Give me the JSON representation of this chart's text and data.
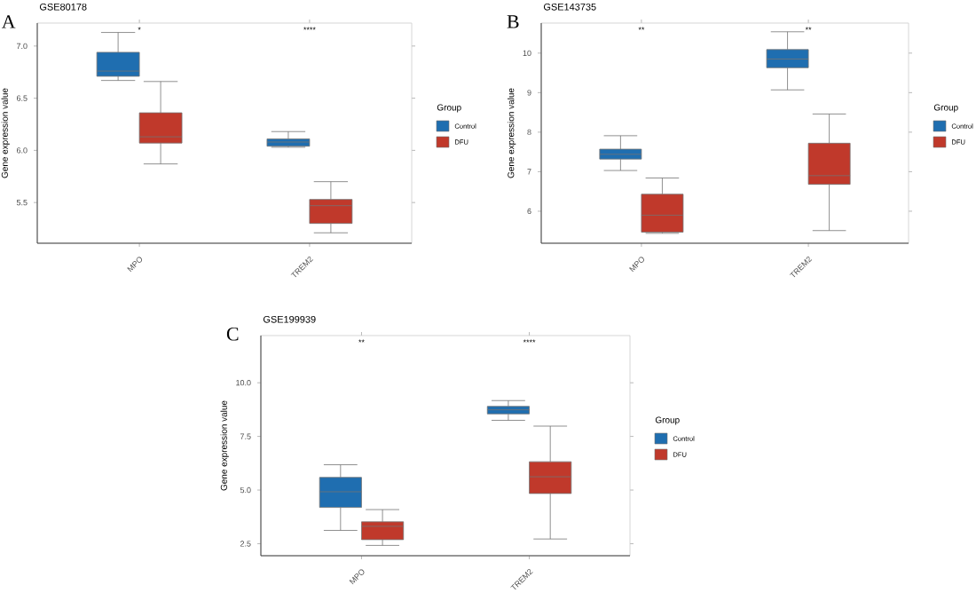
{
  "chart_data": [
    {
      "type": "box",
      "title": "GSE80178",
      "ylabel": "Gene expression value",
      "legend_title": "Group",
      "legend": "right",
      "categories": [
        "MPO",
        "TREM2"
      ],
      "ylim": [
        5.11,
        7.22
      ],
      "yticks": [
        {
          "value": 5.5,
          "label": "5.5"
        },
        {
          "value": 6.0,
          "label": "6.0"
        },
        {
          "value": 6.5,
          "label": "6.5"
        },
        {
          "value": 7.0,
          "label": "7.0"
        }
      ],
      "series": [
        {
          "name": "Control",
          "color": "#1f6eb0",
          "boxes": [
            {
              "low": 6.67,
              "q1": 6.71,
              "median": 6.76,
              "q3": 6.94,
              "high": 7.13
            },
            {
              "low": 6.03,
              "q1": 6.04,
              "median": 6.08,
              "q3": 6.11,
              "high": 6.18
            }
          ]
        },
        {
          "name": "DFU",
          "color": "#c0392b",
          "boxes": [
            {
              "low": 5.87,
              "q1": 6.07,
              "median": 6.13,
              "q3": 6.36,
              "high": 6.66
            },
            {
              "low": 5.21,
              "q1": 5.3,
              "median": 5.47,
              "q3": 5.53,
              "high": 5.7
            }
          ]
        }
      ],
      "annotations": [
        "A",
        "*",
        "****"
      ]
    },
    {
      "type": "box",
      "title": "GSE143735",
      "ylabel": "Gene expression value",
      "legend_title": "Group",
      "legend": "right",
      "categories": [
        "MPO",
        "TREM2"
      ],
      "ylim": [
        5.19,
        10.76
      ],
      "yticks": [
        6,
        7,
        8,
        9,
        10
      ],
      "series": [
        {
          "name": "Control",
          "color": "#1f6eb0",
          "boxes": [
            {
              "low": 7.03,
              "q1": 7.32,
              "median": 7.44,
              "q3": 7.57,
              "high": 7.91
            },
            {
              "low": 9.07,
              "q1": 9.63,
              "median": 9.85,
              "q3": 10.09,
              "high": 10.54
            }
          ]
        },
        {
          "name": "DFU",
          "color": "#c0392b",
          "boxes": [
            {
              "low": 5.44,
              "q1": 5.47,
              "median": 5.9,
              "q3": 6.43,
              "high": 6.84
            },
            {
              "low": 5.51,
              "q1": 6.68,
              "median": 6.9,
              "q3": 7.72,
              "high": 8.46
            }
          ]
        }
      ],
      "annotations": [
        "B",
        "**",
        "**"
      ]
    },
    {
      "type": "box",
      "title": "GSE199939",
      "ylabel": "Gene expression value",
      "legend_title": "Group",
      "legend": "right",
      "categories": [
        "MPO",
        "TREM2"
      ],
      "ylim": [
        1.94,
        12.2
      ],
      "yticks": [
        {
          "value": 2.5,
          "label": "2.5"
        },
        {
          "value": 5.0,
          "label": "5.0"
        },
        {
          "value": 7.5,
          "label": "7.5"
        },
        {
          "value": 10.0,
          "label": "10.0"
        }
      ],
      "series": [
        {
          "name": "Control",
          "color": "#1f6eb0",
          "boxes": [
            {
              "low": 3.12,
              "q1": 4.19,
              "median": 4.92,
              "q3": 5.59,
              "high": 6.18
            },
            {
              "low": 8.25,
              "q1": 8.55,
              "median": 8.74,
              "q3": 8.9,
              "high": 9.17
            }
          ]
        },
        {
          "name": "DFU",
          "color": "#c0392b",
          "boxes": [
            {
              "low": 2.42,
              "q1": 2.69,
              "median": 3.31,
              "q3": 3.52,
              "high": 4.09
            },
            {
              "low": 2.72,
              "q1": 4.84,
              "median": 5.62,
              "q3": 6.32,
              "high": 7.98
            }
          ]
        }
      ],
      "annotations": [
        "C",
        "**",
        "****"
      ]
    }
  ]
}
